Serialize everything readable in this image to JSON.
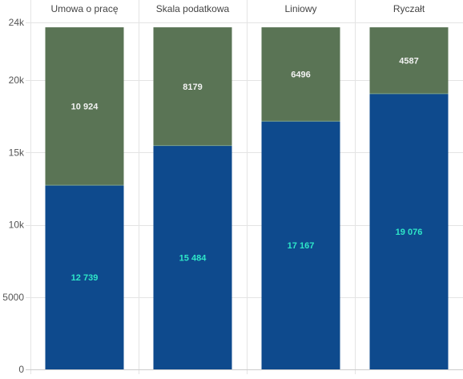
{
  "chart_data": {
    "type": "bar",
    "stacked": true,
    "categories": [
      "Umowa o pracę",
      "Skala podatkowa",
      "Liniowy",
      "Ryczałt"
    ],
    "series": [
      {
        "values": [
          12739,
          15484,
          17167,
          19076
        ],
        "labels": [
          "12 739",
          "15 484",
          "17 167",
          "19 076"
        ],
        "color": "#0e4a8d",
        "label_color": "#2ee6c8"
      },
      {
        "values": [
          10924,
          8179,
          6496,
          4587
        ],
        "labels": [
          "10 924",
          "8179",
          "6496",
          "4587"
        ],
        "color": "#5a7455",
        "label_color": "#f2f2f2"
      }
    ],
    "ylim": [
      0,
      24000
    ],
    "y_ticks": [
      0,
      5000,
      10000,
      15000,
      20000,
      24000
    ],
    "y_tick_labels": [
      "0",
      "5000",
      "10k",
      "15k",
      "20k",
      "24k"
    ],
    "category_axis_position": "top",
    "grid": true,
    "legend": "none"
  }
}
